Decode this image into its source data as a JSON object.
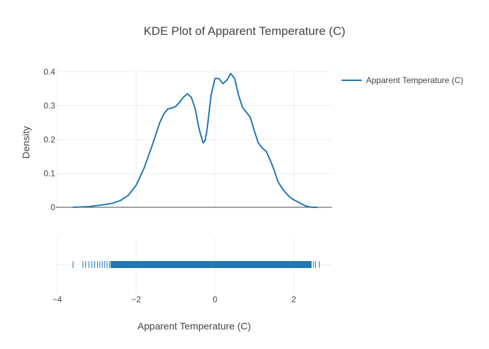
{
  "chart_data": {
    "type": "line",
    "title": "KDE Plot of Apparent Temperature (C)",
    "xlabel": "Apparent Temperature (C)",
    "ylabel": "Density",
    "xlim": [
      -4,
      3
    ],
    "ylim": [
      0,
      0.41
    ],
    "x_ticks": [
      -4,
      -2,
      0,
      2
    ],
    "y_ticks": [
      0,
      0.1,
      0.2,
      0.3,
      0.4
    ],
    "x_tick_labels": [
      "−4",
      "−2",
      "0",
      "2"
    ],
    "y_tick_labels": [
      "0",
      "0.1",
      "0.2",
      "0.3",
      "0.4"
    ],
    "grid": true,
    "legend_position": "top-right",
    "series": [
      {
        "name": "Apparent Temperature (C)",
        "color": "#1f77b4",
        "x": [
          -3.6,
          -3.2,
          -3.0,
          -2.8,
          -2.6,
          -2.4,
          -2.2,
          -2.0,
          -1.8,
          -1.6,
          -1.4,
          -1.3,
          -1.2,
          -1.1,
          -1.0,
          -0.9,
          -0.8,
          -0.7,
          -0.6,
          -0.5,
          -0.4,
          -0.3,
          -0.25,
          -0.2,
          -0.15,
          -0.1,
          0.0,
          0.1,
          0.2,
          0.3,
          0.4,
          0.5,
          0.6,
          0.7,
          0.8,
          0.9,
          1.0,
          1.1,
          1.2,
          1.3,
          1.4,
          1.5,
          1.6,
          1.7,
          1.8,
          1.9,
          2.0,
          2.1,
          2.2,
          2.3,
          2.4,
          2.5,
          2.6
        ],
        "y": [
          0.0,
          0.002,
          0.005,
          0.008,
          0.012,
          0.02,
          0.035,
          0.065,
          0.115,
          0.18,
          0.25,
          0.275,
          0.29,
          0.293,
          0.297,
          0.31,
          0.325,
          0.335,
          0.325,
          0.29,
          0.23,
          0.19,
          0.197,
          0.23,
          0.28,
          0.33,
          0.38,
          0.38,
          0.365,
          0.375,
          0.395,
          0.38,
          0.33,
          0.295,
          0.28,
          0.265,
          0.225,
          0.19,
          0.175,
          0.165,
          0.14,
          0.11,
          0.075,
          0.057,
          0.042,
          0.03,
          0.022,
          0.016,
          0.01,
          0.004,
          0.001,
          0.0,
          0.0
        ]
      }
    ],
    "rug": {
      "min": -3.6,
      "max": 2.65,
      "color": "#1f77b4"
    }
  }
}
